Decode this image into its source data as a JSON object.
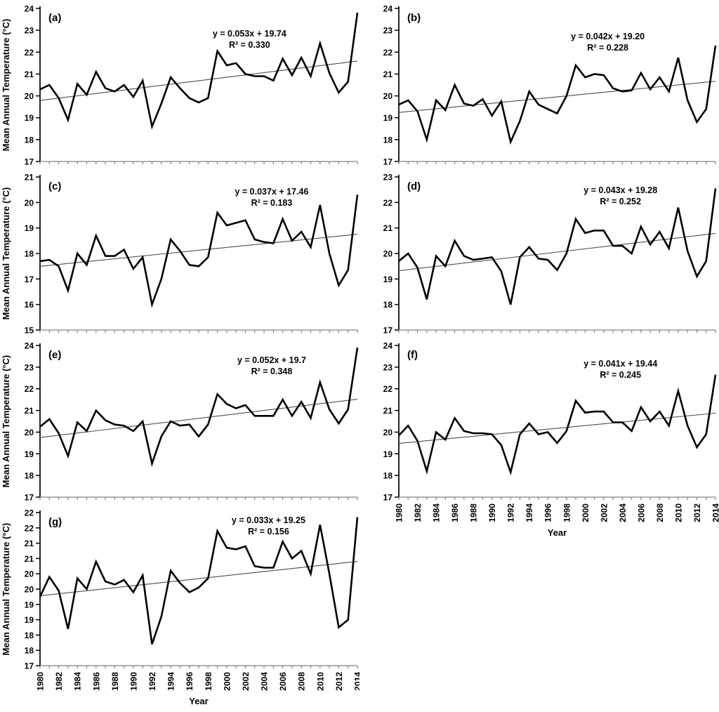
{
  "figure": {
    "ylabel": "Mean Annual Temperature (°C)",
    "xlabel": "Year",
    "years": [
      1980,
      1981,
      1982,
      1983,
      1984,
      1985,
      1986,
      1987,
      1988,
      1989,
      1990,
      1991,
      1992,
      1993,
      1994,
      1995,
      1996,
      1997,
      1998,
      1999,
      2000,
      2001,
      2002,
      2003,
      2004,
      2005,
      2006,
      2007,
      2008,
      2009,
      2010,
      2011,
      2012,
      2013,
      2014
    ],
    "x_tick_labels": [
      "1980",
      "1982",
      "1984",
      "1986",
      "1988",
      "1990",
      "1992",
      "1994",
      "1996",
      "1998",
      "2000",
      "2002",
      "2004",
      "2006",
      "2008",
      "2010",
      "2012",
      "2014"
    ],
    "colors": {
      "series": "#000000",
      "trend": "#4d4d4d",
      "x_axis": "#808080",
      "y_axis": "#000000",
      "text": "#000000",
      "background": "#ffffff"
    }
  },
  "chart_data": [
    {
      "type": "line",
      "panel_label": "(a)",
      "equation": "y = 0.053x + 19.74",
      "r_squared": "R² = 0.330",
      "trend_slope": 0.053,
      "trend_intercept": 19.74,
      "ylim": [
        17,
        24
      ],
      "ytick_step": 1,
      "ytick_labels": [
        "17",
        "18",
        "19",
        "20",
        "21",
        "22",
        "23",
        "24"
      ],
      "values": [
        20.3,
        20.5,
        19.9,
        18.9,
        20.55,
        20.05,
        21.1,
        20.35,
        20.2,
        20.5,
        19.95,
        20.7,
        18.6,
        19.65,
        20.85,
        20.35,
        19.9,
        19.7,
        19.9,
        22.05,
        21.4,
        21.5,
        21.0,
        20.9,
        20.9,
        20.7,
        21.7,
        20.95,
        21.75,
        20.9,
        22.4,
        21.05,
        20.15,
        20.65,
        23.8
      ]
    },
    {
      "type": "line",
      "panel_label": "(b)",
      "equation": "y = 0.042x + 19.20",
      "r_squared": "R² = 0.228",
      "trend_slope": 0.042,
      "trend_intercept": 19.2,
      "ylim": [
        17,
        24
      ],
      "ytick_step": 1,
      "ytick_labels": [
        "17",
        "18",
        "19",
        "20",
        "21",
        "22",
        "23",
        "24"
      ],
      "values": [
        19.6,
        19.8,
        19.3,
        18.0,
        19.8,
        19.35,
        20.5,
        19.65,
        19.55,
        19.85,
        19.1,
        19.75,
        17.9,
        18.85,
        20.2,
        19.6,
        19.4,
        19.2,
        20.0,
        21.4,
        20.85,
        21.0,
        20.95,
        20.35,
        20.2,
        20.25,
        21.05,
        20.3,
        20.85,
        20.2,
        21.75,
        19.8,
        18.8,
        19.4,
        22.3
      ]
    },
    {
      "type": "line",
      "panel_label": "(c)",
      "equation": "y = 0.037x + 17.46",
      "r_squared": "R² = 0.183",
      "trend_slope": 0.037,
      "trend_intercept": 17.46,
      "ylim": [
        15,
        21
      ],
      "ytick_step": 1,
      "ytick_labels": [
        "15",
        "16",
        "17",
        "18",
        "19",
        "20",
        "21"
      ],
      "values": [
        17.7,
        17.75,
        17.5,
        16.55,
        18.0,
        17.55,
        18.7,
        17.9,
        17.9,
        18.15,
        17.4,
        17.85,
        16.0,
        17.0,
        18.55,
        18.1,
        17.55,
        17.5,
        17.85,
        19.6,
        19.1,
        19.2,
        19.3,
        18.55,
        18.45,
        18.4,
        19.35,
        18.5,
        18.85,
        18.25,
        19.9,
        18.0,
        16.75,
        17.35,
        20.3
      ]
    },
    {
      "type": "line",
      "panel_label": "(d)",
      "equation": "y = 0.043x + 19.28",
      "r_squared": "R² = 0.252",
      "trend_slope": 0.043,
      "trend_intercept": 19.28,
      "ylim": [
        17,
        23
      ],
      "ytick_step": 1,
      "ytick_labels": [
        "17",
        "18",
        "19",
        "20",
        "21",
        "22",
        "23"
      ],
      "values": [
        19.7,
        20.0,
        19.45,
        18.2,
        19.9,
        19.5,
        20.5,
        19.9,
        19.75,
        19.8,
        19.85,
        19.3,
        18.0,
        19.85,
        20.25,
        19.8,
        19.75,
        19.35,
        20.0,
        21.35,
        20.8,
        20.9,
        20.9,
        20.3,
        20.3,
        20.0,
        21.05,
        20.35,
        20.85,
        20.2,
        21.8,
        20.1,
        19.1,
        19.7,
        22.55
      ]
    },
    {
      "type": "line",
      "panel_label": "(e)",
      "equation": "y = 0.052x + 19.7",
      "r_squared": "R² = 0.348",
      "trend_slope": 0.052,
      "trend_intercept": 19.7,
      "ylim": [
        17,
        24
      ],
      "ytick_step": 1,
      "ytick_labels": [
        "17",
        "18",
        "19",
        "20",
        "21",
        "22",
        "23",
        "24"
      ],
      "values": [
        20.25,
        20.6,
        19.95,
        18.9,
        20.45,
        20.05,
        21.0,
        20.55,
        20.35,
        20.3,
        20.05,
        20.5,
        18.55,
        19.8,
        20.5,
        20.3,
        20.35,
        19.8,
        20.35,
        21.75,
        21.3,
        21.1,
        21.25,
        20.75,
        20.75,
        20.75,
        21.5,
        20.75,
        21.4,
        20.65,
        22.3,
        21.05,
        20.4,
        21.05,
        23.9
      ]
    },
    {
      "type": "line",
      "panel_label": "(f)",
      "equation": "y = 0.041x + 19.44",
      "r_squared": "R² = 0.245",
      "trend_slope": 0.041,
      "trend_intercept": 19.44,
      "ylim": [
        17,
        24
      ],
      "ytick_step": 1,
      "ytick_labels": [
        "17",
        "18",
        "19",
        "20",
        "21",
        "22",
        "23",
        "24"
      ],
      "values": [
        19.85,
        20.3,
        19.6,
        18.2,
        20.0,
        19.65,
        20.65,
        20.05,
        19.95,
        19.95,
        19.9,
        19.4,
        18.15,
        19.9,
        20.4,
        19.9,
        20.0,
        19.5,
        20.05,
        21.45,
        20.9,
        20.95,
        20.95,
        20.45,
        20.45,
        20.05,
        21.15,
        20.5,
        20.95,
        20.3,
        21.9,
        20.3,
        19.3,
        19.9,
        22.65
      ]
    },
    {
      "type": "line",
      "panel_label": "(g)",
      "equation": "y = 0.033x + 19.25",
      "r_squared": "R² = 0.156",
      "trend_slope": 0.033,
      "trend_intercept": 19.25,
      "ylim": [
        17,
        22
      ],
      "ytick_step": 0.5,
      "ytick_labels": [
        "17",
        "18",
        "18",
        "19",
        "19",
        "20",
        "20",
        "21",
        "21",
        "22",
        "22"
      ],
      "values": [
        19.25,
        19.9,
        19.45,
        18.2,
        19.85,
        19.5,
        20.4,
        19.75,
        19.65,
        19.8,
        19.4,
        19.95,
        17.7,
        18.6,
        20.1,
        19.7,
        19.4,
        19.55,
        19.85,
        21.4,
        20.85,
        20.8,
        20.9,
        20.25,
        20.2,
        20.2,
        21.05,
        20.5,
        20.75,
        20.0,
        21.6,
        20.0,
        18.25,
        18.5,
        21.85
      ]
    }
  ]
}
